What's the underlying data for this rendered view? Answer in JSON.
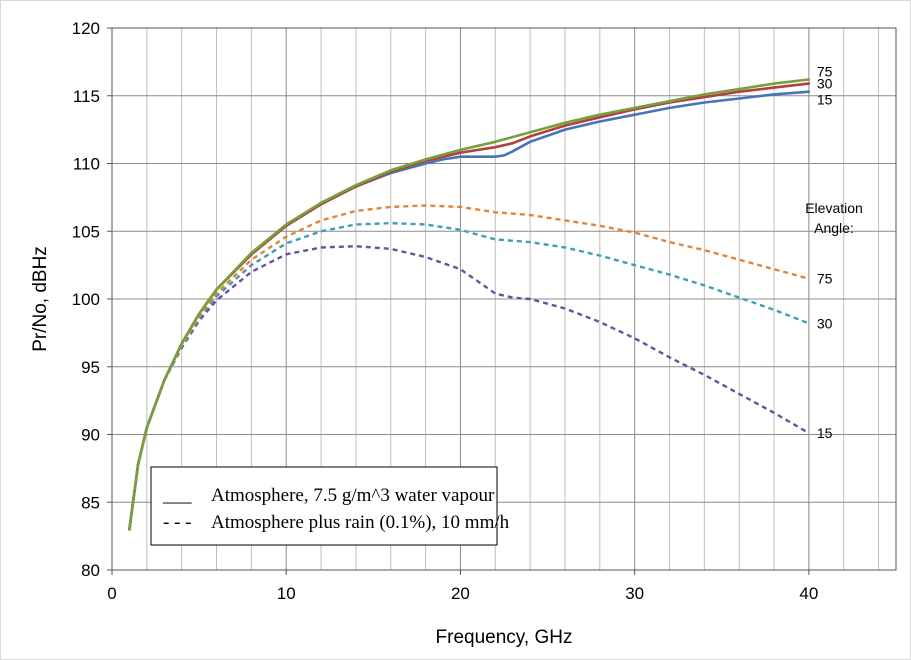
{
  "chart_data": {
    "type": "line",
    "xlabel": "Frequency, GHz",
    "ylabel": "Pr/No, dBHz",
    "xlim": [
      0,
      45
    ],
    "ylim": [
      80,
      120
    ],
    "x_ticks": [
      0,
      10,
      20,
      30,
      40
    ],
    "y_ticks": [
      80,
      85,
      90,
      95,
      100,
      105,
      110,
      115,
      120
    ],
    "x_minor_step": 2,
    "grid": true,
    "legend_position": "bottom-left",
    "legend": [
      {
        "marker": "___",
        "text": "Atmosphere, 7.5 g/m^3 water vapour",
        "style": "solid"
      },
      {
        "marker": "- - -",
        "text": "Atmosphere plus rain (0.1%), 10 mm/h",
        "style": "dashed"
      }
    ],
    "annotations": {
      "elevation_title": [
        "Elevation",
        "Angle:"
      ]
    },
    "series": [
      {
        "label": "75",
        "style": "solid",
        "color": "#77a03d",
        "x": [
          1,
          1.5,
          2,
          3,
          4,
          5,
          6,
          8,
          10,
          12,
          14,
          16,
          18,
          20,
          22,
          24,
          26,
          28,
          30,
          32,
          34,
          36,
          38,
          40
        ],
        "y": [
          83,
          87.8,
          90.5,
          94,
          96.7,
          98.9,
          100.7,
          103.4,
          105.5,
          107.1,
          108.4,
          109.5,
          110.3,
          111,
          111.6,
          112.3,
          113,
          113.6,
          114.1,
          114.6,
          115.1,
          115.5,
          115.9,
          116.2
        ]
      },
      {
        "label": "30",
        "style": "solid",
        "color": "#b2403c",
        "x": [
          1,
          1.5,
          2,
          3,
          4,
          5,
          6,
          8,
          10,
          12,
          14,
          16,
          18,
          20,
          21,
          22,
          23,
          24,
          26,
          28,
          30,
          32,
          34,
          36,
          38,
          40
        ],
        "y": [
          83,
          87.8,
          90.5,
          94,
          96.7,
          98.9,
          100.7,
          103.3,
          105.4,
          107,
          108.3,
          109.4,
          110.2,
          110.8,
          111,
          111.2,
          111.5,
          112,
          112.8,
          113.4,
          114,
          114.5,
          114.9,
          115.3,
          115.6,
          115.9
        ]
      },
      {
        "label": "15",
        "style": "solid",
        "color": "#4a72b8",
        "x": [
          1,
          1.5,
          2,
          3,
          4,
          5,
          6,
          8,
          10,
          12,
          14,
          16,
          18,
          19,
          20,
          21,
          22,
          22.5,
          23,
          24,
          26,
          28,
          30,
          32,
          34,
          36,
          38,
          40
        ],
        "y": [
          83,
          87.8,
          90.5,
          94,
          96.7,
          98.9,
          100.7,
          103.3,
          105.4,
          107,
          108.3,
          109.3,
          110,
          110.3,
          110.5,
          110.5,
          110.5,
          110.6,
          110.9,
          111.6,
          112.5,
          113.1,
          113.6,
          114.1,
          114.5,
          114.8,
          115.1,
          115.3
        ]
      },
      {
        "label": "75",
        "style": "dashed",
        "color": "#e0843a",
        "x": [
          1,
          1.5,
          2,
          3,
          4,
          5,
          6,
          8,
          10,
          12,
          14,
          16,
          18,
          20,
          22,
          24,
          26,
          28,
          30,
          32,
          34,
          36,
          38,
          40
        ],
        "y": [
          83,
          87.8,
          90.5,
          94,
          96.6,
          98.7,
          100.4,
          102.9,
          104.6,
          105.8,
          106.5,
          106.8,
          106.9,
          106.8,
          106.4,
          106.2,
          105.8,
          105.4,
          104.9,
          104.2,
          103.6,
          102.9,
          102.2,
          101.5
        ]
      },
      {
        "label": "30",
        "style": "dashed",
        "color": "#3f9db4",
        "x": [
          1,
          1.5,
          2,
          3,
          4,
          5,
          6,
          8,
          10,
          12,
          14,
          16,
          18,
          20,
          22,
          24,
          26,
          28,
          30,
          32,
          34,
          36,
          38,
          40
        ],
        "y": [
          83,
          87.8,
          90.5,
          94,
          96.5,
          98.6,
          100.2,
          102.5,
          104.1,
          105,
          105.5,
          105.6,
          105.5,
          105.1,
          104.4,
          104.2,
          103.8,
          103.2,
          102.5,
          101.8,
          101,
          100.1,
          99.2,
          98.2
        ]
      },
      {
        "label": "15",
        "style": "dashed",
        "color": "#6b50a0",
        "x": [
          1,
          1.5,
          2,
          3,
          4,
          5,
          6,
          8,
          10,
          12,
          14,
          16,
          18,
          20,
          21,
          22,
          23,
          24,
          26,
          28,
          30,
          32,
          34,
          36,
          38,
          40
        ],
        "y": [
          83,
          87.8,
          90.5,
          94,
          96.4,
          98.4,
          99.9,
          102,
          103.3,
          103.8,
          103.9,
          103.7,
          103.1,
          102.2,
          101.3,
          100.4,
          100.1,
          100,
          99.3,
          98.3,
          97.1,
          95.7,
          94.4,
          93,
          91.6,
          90.1
        ]
      }
    ]
  }
}
